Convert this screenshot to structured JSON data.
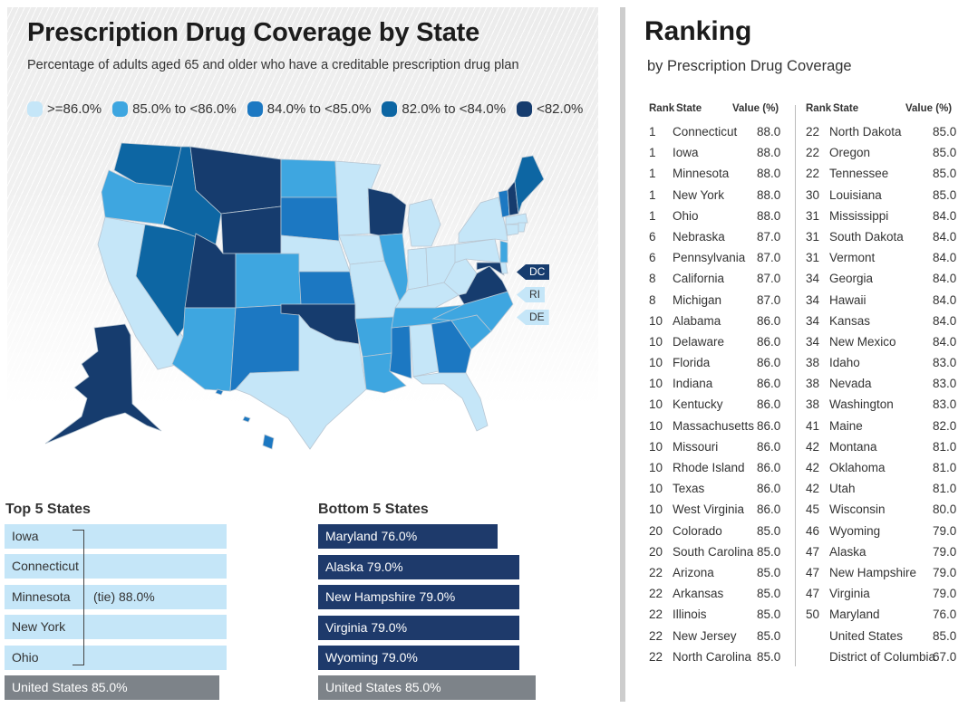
{
  "map_panel": {
    "title": "Prescription Drug Coverage by State",
    "subtitle": "Percentage of adults aged 65 and older who have a creditable prescription drug plan",
    "legend": [
      {
        "label": ">=86.0%",
        "color": "#c5e6f8"
      },
      {
        "label": "85.0% to <86.0%",
        "color": "#3ea6e0"
      },
      {
        "label": "84.0% to <85.0%",
        "color": "#1c78c2"
      },
      {
        "label": "82.0% to <84.0%",
        "color": "#0d66a3"
      },
      {
        "label": "<82.0%",
        "color": "#163c6e"
      }
    ],
    "small_state_tags": [
      {
        "label": "DC",
        "color": "#163c6e",
        "text_color": "#ffffff"
      },
      {
        "label": "RI",
        "color": "#c5e6f8",
        "text_color": "#333333"
      },
      {
        "label": "DE",
        "color": "#c5e6f8",
        "text_color": "#333333"
      }
    ]
  },
  "top5": {
    "title": "Top 5 States",
    "states": [
      "Iowa",
      "Connecticut",
      "Minnesota",
      "New York",
      "Ohio"
    ],
    "tie_label": "(tie) 88.0%",
    "value": 88.0,
    "us_label": "United States 85.0%",
    "us_value": 85.0
  },
  "bottom5": {
    "title": "Bottom 5 States",
    "items": [
      {
        "label": "Maryland 76.0%",
        "value": 76.0
      },
      {
        "label": "Alaska 79.0%",
        "value": 79.0
      },
      {
        "label": "New Hampshire 79.0%",
        "value": 79.0
      },
      {
        "label": "Virginia 79.0%",
        "value": 79.0
      },
      {
        "label": "Wyoming 79.0%",
        "value": 79.0
      }
    ],
    "us_label": "United States 85.0%",
    "us_value": 85.0
  },
  "ranking": {
    "title": "Ranking",
    "subtitle": "by Prescription Drug Coverage",
    "headers": {
      "rank": "Rank",
      "state": "State",
      "value": "Value (%)"
    },
    "left": [
      {
        "rank": "1",
        "state": "Connecticut",
        "value": "88.0"
      },
      {
        "rank": "1",
        "state": "Iowa",
        "value": "88.0"
      },
      {
        "rank": "1",
        "state": "Minnesota",
        "value": "88.0"
      },
      {
        "rank": "1",
        "state": "New York",
        "value": "88.0"
      },
      {
        "rank": "1",
        "state": "Ohio",
        "value": "88.0"
      },
      {
        "rank": "6",
        "state": "Nebraska",
        "value": "87.0"
      },
      {
        "rank": "6",
        "state": "Pennsylvania",
        "value": "87.0"
      },
      {
        "rank": "8",
        "state": "California",
        "value": "87.0"
      },
      {
        "rank": "8",
        "state": "Michigan",
        "value": "87.0"
      },
      {
        "rank": "10",
        "state": "Alabama",
        "value": "86.0"
      },
      {
        "rank": "10",
        "state": "Delaware",
        "value": "86.0"
      },
      {
        "rank": "10",
        "state": "Florida",
        "value": "86.0"
      },
      {
        "rank": "10",
        "state": "Indiana",
        "value": "86.0"
      },
      {
        "rank": "10",
        "state": "Kentucky",
        "value": "86.0"
      },
      {
        "rank": "10",
        "state": "Massachusetts",
        "value": "86.0"
      },
      {
        "rank": "10",
        "state": "Missouri",
        "value": "86.0"
      },
      {
        "rank": "10",
        "state": "Rhode Island",
        "value": "86.0"
      },
      {
        "rank": "10",
        "state": "Texas",
        "value": "86.0"
      },
      {
        "rank": "10",
        "state": "West Virginia",
        "value": "86.0"
      },
      {
        "rank": "20",
        "state": "Colorado",
        "value": "85.0"
      },
      {
        "rank": "20",
        "state": "South Carolina",
        "value": "85.0"
      },
      {
        "rank": "22",
        "state": "Arizona",
        "value": "85.0"
      },
      {
        "rank": "22",
        "state": "Arkansas",
        "value": "85.0"
      },
      {
        "rank": "22",
        "state": "Illinois",
        "value": "85.0"
      },
      {
        "rank": "22",
        "state": "New Jersey",
        "value": "85.0"
      },
      {
        "rank": "22",
        "state": "North Carolina",
        "value": "85.0"
      }
    ],
    "right": [
      {
        "rank": "22",
        "state": "North Dakota",
        "value": "85.0"
      },
      {
        "rank": "22",
        "state": "Oregon",
        "value": "85.0"
      },
      {
        "rank": "22",
        "state": "Tennessee",
        "value": "85.0"
      },
      {
        "rank": "30",
        "state": "Louisiana",
        "value": "85.0"
      },
      {
        "rank": "31",
        "state": "Mississippi",
        "value": "84.0"
      },
      {
        "rank": "31",
        "state": "South Dakota",
        "value": "84.0"
      },
      {
        "rank": "31",
        "state": "Vermont",
        "value": "84.0"
      },
      {
        "rank": "34",
        "state": "Georgia",
        "value": "84.0"
      },
      {
        "rank": "34",
        "state": "Hawaii",
        "value": "84.0"
      },
      {
        "rank": "34",
        "state": "Kansas",
        "value": "84.0"
      },
      {
        "rank": "34",
        "state": "New Mexico",
        "value": "84.0"
      },
      {
        "rank": "38",
        "state": "Idaho",
        "value": "83.0"
      },
      {
        "rank": "38",
        "state": "Nevada",
        "value": "83.0"
      },
      {
        "rank": "38",
        "state": "Washington",
        "value": "83.0"
      },
      {
        "rank": "41",
        "state": "Maine",
        "value": "82.0"
      },
      {
        "rank": "42",
        "state": "Montana",
        "value": "81.0"
      },
      {
        "rank": "42",
        "state": "Oklahoma",
        "value": "81.0"
      },
      {
        "rank": "42",
        "state": "Utah",
        "value": "81.0"
      },
      {
        "rank": "45",
        "state": "Wisconsin",
        "value": "80.0"
      },
      {
        "rank": "46",
        "state": "Wyoming",
        "value": "79.0"
      },
      {
        "rank": "47",
        "state": "Alaska",
        "value": "79.0"
      },
      {
        "rank": "47",
        "state": "New Hampshire",
        "value": "79.0"
      },
      {
        "rank": "47",
        "state": "Virginia",
        "value": "79.0"
      },
      {
        "rank": "50",
        "state": "Maryland",
        "value": "76.0"
      },
      {
        "rank": "",
        "state": "United States",
        "value": "85.0"
      },
      {
        "rank": "",
        "state": "District of Columbia",
        "value": "67.0"
      }
    ]
  },
  "chart_data": {
    "type": "heatmap",
    "title": "Prescription Drug Coverage by State",
    "subtitle": "Percentage of adults aged 65 and older who have a creditable prescription drug plan",
    "legend_bins": [
      ">=86.0%",
      "85.0% to <86.0%",
      "84.0% to <85.0%",
      "82.0% to <84.0%",
      "<82.0%"
    ],
    "values": {
      "CT": 88.0,
      "IA": 88.0,
      "MN": 88.0,
      "NY": 88.0,
      "OH": 88.0,
      "NE": 87.0,
      "PA": 87.0,
      "CA": 87.0,
      "MI": 87.0,
      "AL": 86.0,
      "DE": 86.0,
      "FL": 86.0,
      "IN": 86.0,
      "KY": 86.0,
      "MA": 86.0,
      "MO": 86.0,
      "RI": 86.0,
      "TX": 86.0,
      "WV": 86.0,
      "CO": 85.0,
      "SC": 85.0,
      "AZ": 85.0,
      "AR": 85.0,
      "IL": 85.0,
      "NJ": 85.0,
      "NC": 85.0,
      "ND": 85.0,
      "OR": 85.0,
      "TN": 85.0,
      "LA": 85.0,
      "MS": 84.0,
      "SD": 84.0,
      "VT": 84.0,
      "GA": 84.0,
      "HI": 84.0,
      "KS": 84.0,
      "NM": 84.0,
      "ID": 83.0,
      "NV": 83.0,
      "WA": 83.0,
      "ME": 82.0,
      "MT": 81.0,
      "OK": 81.0,
      "UT": 81.0,
      "WI": 80.0,
      "WY": 79.0,
      "AK": 79.0,
      "NH": 79.0,
      "VA": 79.0,
      "MD": 76.0,
      "DC": 67.0,
      "US": 85.0
    }
  }
}
